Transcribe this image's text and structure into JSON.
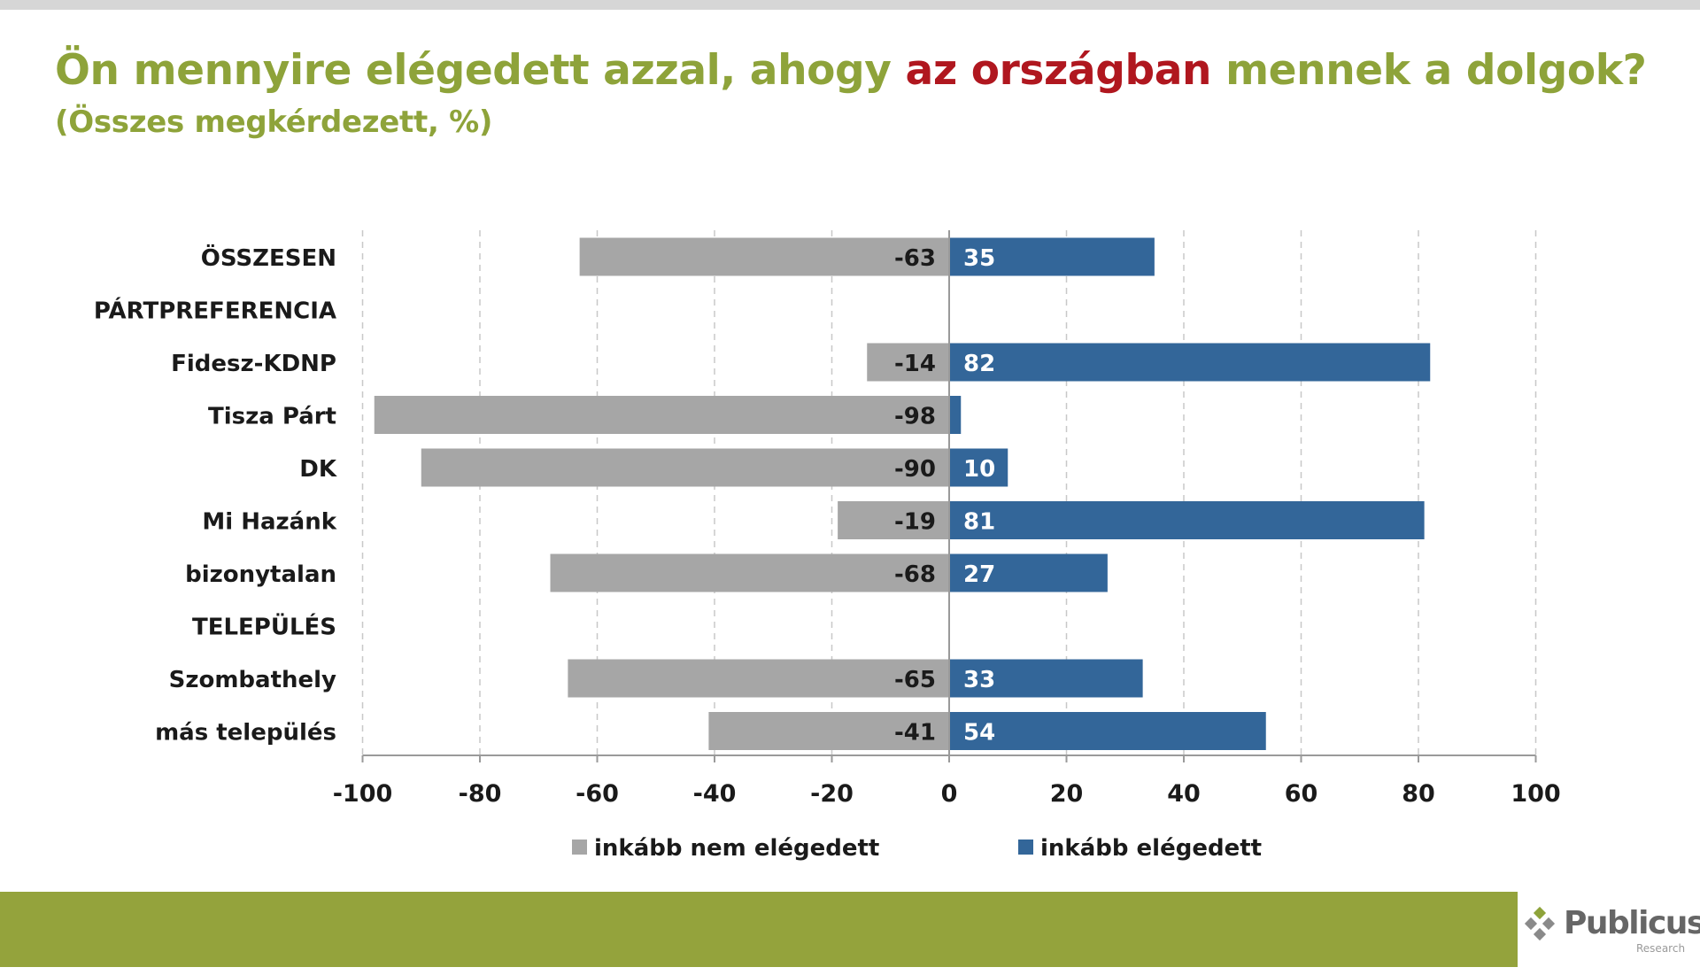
{
  "title": {
    "part1": "Ön mennyire elégedett azzal, ahogy ",
    "highlight": "az országban",
    "part2": " mennek a dolgok?"
  },
  "subtitle": "(Összes megkérdezett, %)",
  "colors": {
    "title": "#8ea33a",
    "highlight": "#b0171f",
    "negative": "#a6a6a6",
    "positive": "#336699",
    "footer_band": "#94a33c"
  },
  "logo": {
    "name": "Publicus",
    "sub": "Research",
    "icon": "diamond-grid-icon"
  },
  "chart_data": {
    "type": "bar",
    "orientation": "horizontal",
    "stacking": "diverging",
    "categories": [
      "ÖSSZESEN",
      "PÁRTPREFERENCIA",
      "Fidesz-KDNP",
      "Tisza Párt",
      "DK",
      "Mi Hazánk",
      "bizonytalan",
      "TELEPÜLÉS",
      "Szombathely",
      "más település"
    ],
    "series": [
      {
        "name": "inkább nem elégedett",
        "color": "#a6a6a6",
        "values": [
          -63,
          null,
          -14,
          -98,
          -90,
          -19,
          -68,
          null,
          -65,
          -41
        ]
      },
      {
        "name": "inkább elégedett",
        "color": "#336699",
        "values": [
          35,
          null,
          82,
          2,
          10,
          81,
          27,
          null,
          33,
          54
        ]
      }
    ],
    "data_labels": {
      "negative": [
        "-63",
        "",
        "-14",
        "-98",
        "-90",
        "-19",
        "-68",
        "",
        "-65",
        "-41"
      ],
      "positive": [
        "35",
        "",
        "82",
        "",
        "10",
        "81",
        "27",
        "",
        "33",
        "54"
      ]
    },
    "xlim": [
      -100,
      100
    ],
    "xticks": [
      -100,
      -80,
      -60,
      -40,
      -20,
      0,
      20,
      40,
      60,
      80,
      100
    ],
    "grid": "vertical dashed",
    "legend": "bottom"
  }
}
